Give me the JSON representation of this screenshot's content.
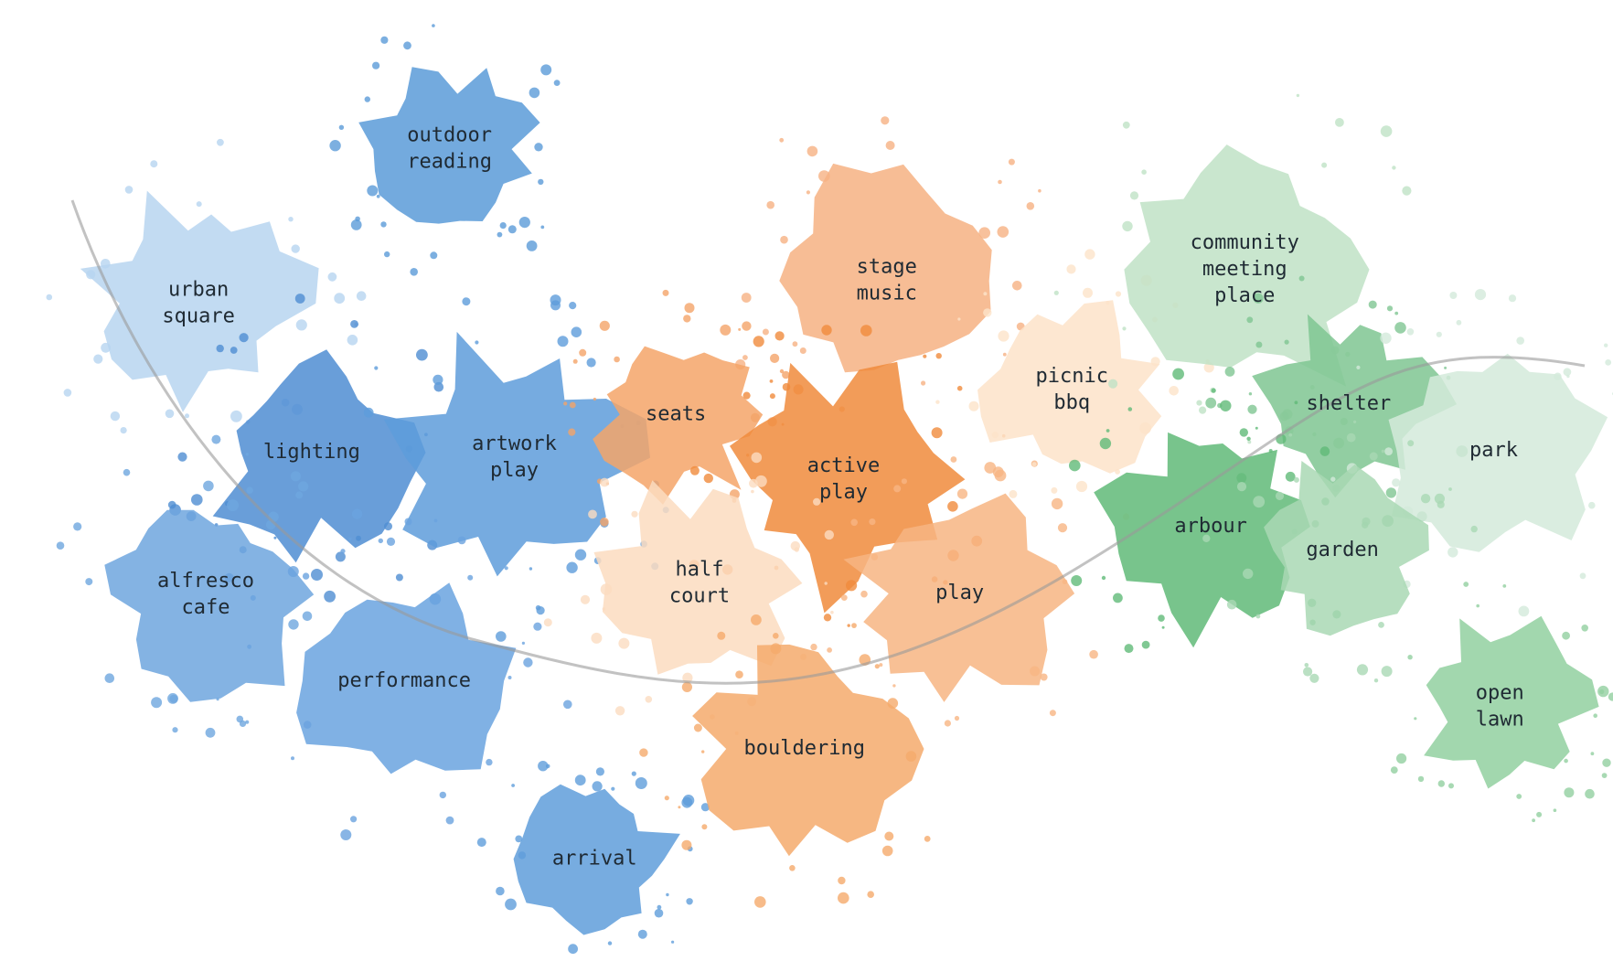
{
  "nodes": [
    {
      "lines": [
        "outdoor",
        "reading"
      ]
    },
    {
      "lines": [
        "urban",
        "square"
      ]
    },
    {
      "lines": [
        "lighting"
      ]
    },
    {
      "lines": [
        "artwork",
        "play"
      ]
    },
    {
      "lines": [
        "alfresco",
        "cafe"
      ]
    },
    {
      "lines": [
        "performance"
      ]
    },
    {
      "lines": [
        "arrival"
      ]
    },
    {
      "lines": [
        "stage",
        "music"
      ]
    },
    {
      "lines": [
        "seats"
      ]
    },
    {
      "lines": [
        "active",
        "play"
      ]
    },
    {
      "lines": [
        "half",
        "court"
      ]
    },
    {
      "lines": [
        "play"
      ]
    },
    {
      "lines": [
        "bouldering"
      ]
    },
    {
      "lines": [
        "picnic",
        "bbq"
      ]
    },
    {
      "lines": [
        "community",
        "meeting",
        "place"
      ]
    },
    {
      "lines": [
        "shelter"
      ]
    },
    {
      "lines": [
        "park"
      ]
    },
    {
      "lines": [
        "arbour"
      ]
    },
    {
      "lines": [
        "garden"
      ]
    },
    {
      "lines": [
        "open",
        "lawn"
      ]
    }
  ]
}
